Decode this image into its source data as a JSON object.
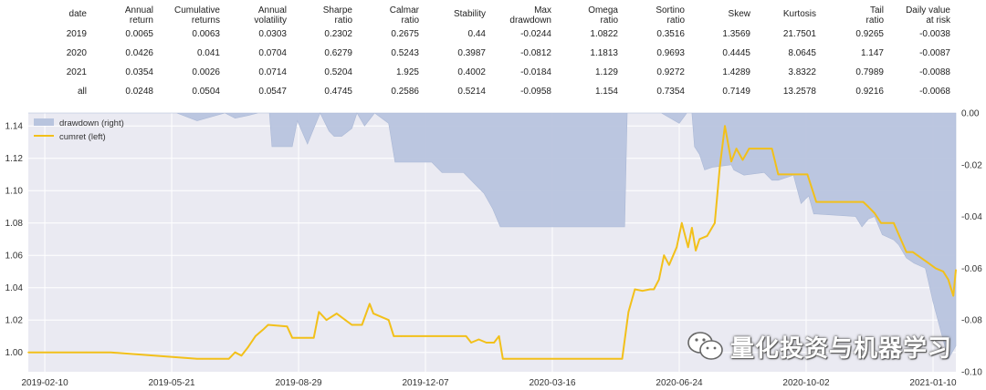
{
  "stats_table": {
    "headers": [
      "date",
      "Annual\nreturn",
      "Cumulative\nreturns",
      "Annual\nvolatility",
      "Sharpe\nratio",
      "Calmar\nratio",
      "Stability",
      "Max\ndrawdown",
      "Omega\nratio",
      "Sortino\nratio",
      "Skew",
      "Kurtosis",
      "Tail\nratio",
      "Daily value\nat risk"
    ],
    "rows": [
      [
        "2019",
        "0.0065",
        "0.0063",
        "0.0303",
        "0.2302",
        "0.2675",
        "0.44",
        "-0.0244",
        "1.0822",
        "0.3516",
        "1.3569",
        "21.7501",
        "0.9265",
        "-0.0038"
      ],
      [
        "2020",
        "0.0426",
        "0.041",
        "0.0704",
        "0.6279",
        "0.5243",
        "0.3987",
        "-0.0812",
        "1.1813",
        "0.9693",
        "0.4445",
        "8.0645",
        "1.147",
        "-0.0087"
      ],
      [
        "2021",
        "0.0354",
        "0.0026",
        "0.0714",
        "0.5204",
        "1.925",
        "0.4002",
        "-0.0184",
        "1.129",
        "0.9272",
        "1.4289",
        "3.8322",
        "0.7989",
        "-0.0088"
      ],
      [
        "all",
        "0.0248",
        "0.0504",
        "0.0547",
        "0.4745",
        "0.2586",
        "0.5214",
        "-0.0958",
        "1.154",
        "0.7354",
        "0.7149",
        "13.2578",
        "0.9216",
        "-0.0068"
      ]
    ]
  },
  "chart_data": {
    "type": "line",
    "x_ticks": [
      "2019-02-10",
      "2019-05-21",
      "2019-08-29",
      "2019-12-07",
      "2020-03-16",
      "2020-06-24",
      "2020-10-02",
      "2021-01-10"
    ],
    "left_axis": {
      "ylim": [
        0.988,
        1.148
      ],
      "ticks": [
        "1.00",
        "1.02",
        "1.04",
        "1.06",
        "1.08",
        "1.10",
        "1.12",
        "1.14"
      ]
    },
    "right_axis": {
      "ylim": [
        -0.1,
        0.0
      ],
      "ticks": [
        "0.00",
        "-0.02",
        "-0.04",
        "-0.06",
        "-0.08",
        "-0.10"
      ]
    },
    "legend": {
      "placement": "top-left",
      "items": [
        {
          "label": "drawdown (right)",
          "color": "#b8c4de",
          "kind": "area"
        },
        {
          "label": "cumret (left)",
          "color": "#f2c01a",
          "kind": "line"
        }
      ]
    },
    "grid": true,
    "background": "#eaeaf2",
    "series": [
      {
        "name": "cumret (left)",
        "axis": "left",
        "color": "#f2c01a",
        "x": [
          "2019-01-28",
          "2019-03-15",
          "2019-04-03",
          "2019-06-10",
          "2019-06-14",
          "2019-06-20",
          "2019-06-25",
          "2019-07-01",
          "2019-07-05",
          "2019-07-10",
          "2019-07-15",
          "2019-07-20",
          "2019-07-26",
          "2019-08-01",
          "2019-08-05",
          "2019-08-20",
          "2019-08-24",
          "2019-08-29",
          "2019-09-04",
          "2019-09-10",
          "2019-09-14",
          "2019-09-20",
          "2019-09-28",
          "2019-10-10",
          "2019-10-15",
          "2019-10-18",
          "2019-10-24",
          "2019-10-27",
          "2019-11-08",
          "2019-11-12",
          "2019-11-18",
          "2019-11-21",
          "2019-11-26",
          "2020-01-08",
          "2020-01-12",
          "2020-01-18",
          "2020-01-24",
          "2020-01-30",
          "2020-02-03",
          "2020-02-06",
          "2020-05-10",
          "2020-05-15",
          "2020-05-20",
          "2020-05-26",
          "2020-06-01",
          "2020-06-04",
          "2020-06-08",
          "2020-06-12",
          "2020-06-16",
          "2020-06-22",
          "2020-06-26",
          "2020-07-01",
          "2020-07-04",
          "2020-07-07",
          "2020-07-10",
          "2020-07-16",
          "2020-07-22",
          "2020-07-26",
          "2020-07-30",
          "2020-08-04",
          "2020-08-08",
          "2020-08-13",
          "2020-08-18",
          "2020-09-05",
          "2020-09-10",
          "2020-09-20",
          "2020-09-28",
          "2020-10-03",
          "2020-10-10",
          "2020-11-10",
          "2020-11-16",
          "2020-11-20",
          "2020-11-25",
          "2020-11-30",
          "2020-12-10",
          "2020-12-20",
          "2020-12-25",
          "2021-01-05",
          "2021-01-12",
          "2021-01-18",
          "2021-01-22",
          "2021-01-26",
          "2021-01-28"
        ],
        "y": [
          1.0,
          1.0,
          1.0,
          0.996,
          0.996,
          0.996,
          0.996,
          0.996,
          0.996,
          1.0,
          0.998,
          1.003,
          1.01,
          1.014,
          1.017,
          1.016,
          1.009,
          1.009,
          1.009,
          1.009,
          1.025,
          1.02,
          1.024,
          1.017,
          1.017,
          1.017,
          1.03,
          1.024,
          1.02,
          1.01,
          1.01,
          1.01,
          1.01,
          1.01,
          1.006,
          1.008,
          1.006,
          1.006,
          1.01,
          0.996,
          0.996,
          1.025,
          1.039,
          1.038,
          1.039,
          1.039,
          1.045,
          1.06,
          1.054,
          1.065,
          1.08,
          1.065,
          1.077,
          1.063,
          1.07,
          1.072,
          1.08,
          1.115,
          1.14,
          1.118,
          1.126,
          1.119,
          1.126,
          1.126,
          1.11,
          1.11,
          1.11,
          1.11,
          1.093,
          1.093,
          1.093,
          1.09,
          1.086,
          1.08,
          1.08,
          1.062,
          1.062,
          1.056,
          1.052,
          1.05,
          1.045,
          1.035,
          1.051
        ]
      },
      {
        "name": "drawdown (right)",
        "axis": "right",
        "color": "#b8c4de",
        "x": [
          "2019-01-28",
          "2019-04-25",
          "2019-05-05",
          "2019-05-25",
          "2019-06-10",
          "2019-07-02",
          "2019-07-10",
          "2019-07-20",
          "2019-07-28",
          "2019-08-06",
          "2019-08-08",
          "2019-08-24",
          "2019-08-28",
          "2019-09-05",
          "2019-09-10",
          "2019-09-15",
          "2019-09-22",
          "2019-09-26",
          "2019-10-02",
          "2019-10-10",
          "2019-10-14",
          "2019-10-20",
          "2019-10-28",
          "2019-11-08",
          "2019-11-13",
          "2019-12-12",
          "2019-12-20",
          "2020-01-06",
          "2020-01-14",
          "2020-01-22",
          "2020-01-29",
          "2020-02-04",
          "2020-02-10",
          "2020-05-12",
          "2020-05-14",
          "2020-06-10",
          "2020-06-24",
          "2020-06-30",
          "2020-07-04",
          "2020-07-06",
          "2020-07-10",
          "2020-07-14",
          "2020-07-20",
          "2020-08-04",
          "2020-08-06",
          "2020-08-14",
          "2020-08-30",
          "2020-09-05",
          "2020-09-10",
          "2020-09-22",
          "2020-09-28",
          "2020-10-04",
          "2020-10-08",
          "2020-10-10",
          "2020-11-10",
          "2020-11-15",
          "2020-11-20",
          "2020-11-25",
          "2020-12-01",
          "2020-12-10",
          "2020-12-14",
          "2020-12-20",
          "2020-12-26",
          "2021-01-04",
          "2021-01-10",
          "2021-01-16",
          "2021-01-22",
          "2021-01-28"
        ],
        "y": [
          0.0,
          0.0,
          0.0,
          0.0,
          -0.003,
          0.0,
          -0.002,
          -0.001,
          0.0,
          0.0,
          -0.013,
          -0.013,
          -0.003,
          -0.012,
          -0.006,
          0.0,
          -0.007,
          -0.009,
          -0.009,
          -0.006,
          0.0,
          -0.005,
          0.0,
          -0.004,
          -0.019,
          -0.019,
          -0.023,
          -0.023,
          -0.027,
          -0.031,
          -0.037,
          -0.044,
          -0.044,
          -0.044,
          0.0,
          0.0,
          -0.004,
          0.0,
          0.0,
          -0.013,
          -0.016,
          -0.022,
          -0.021,
          -0.02,
          -0.022,
          -0.024,
          -0.023,
          -0.026,
          -0.026,
          -0.024,
          -0.035,
          -0.032,
          -0.039,
          -0.039,
          -0.04,
          -0.044,
          -0.041,
          -0.04,
          -0.047,
          -0.049,
          -0.051,
          -0.056,
          -0.058,
          -0.06,
          -0.073,
          -0.084,
          -0.095,
          -0.09
        ]
      }
    ]
  },
  "watermark": {
    "text": "量化投资与机器学习",
    "icon": "wechat-icon"
  }
}
